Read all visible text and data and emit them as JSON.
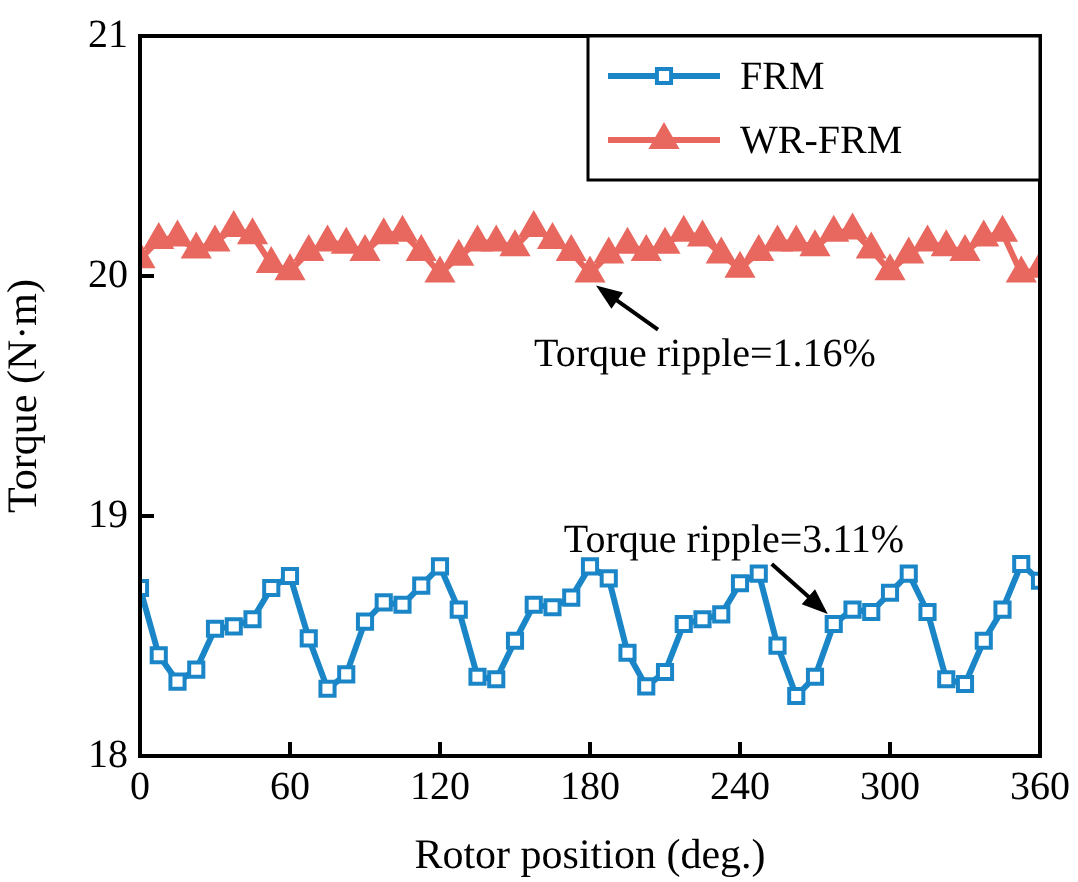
{
  "chart_data": {
    "type": "line",
    "xlabel": "Rotor position (deg.)",
    "ylabel": "Torque (N·m)",
    "x": [
      0,
      7.5,
      15,
      22.5,
      30,
      37.5,
      45,
      52.5,
      60,
      67.5,
      75,
      82.5,
      90,
      97.5,
      105,
      112.5,
      120,
      127.5,
      135,
      142.5,
      150,
      157.5,
      165,
      172.5,
      180,
      187.5,
      195,
      202.5,
      210,
      217.5,
      225,
      232.5,
      240,
      247.5,
      255,
      262.5,
      270,
      277.5,
      285,
      292.5,
      300,
      307.5,
      315,
      322.5,
      330,
      337.5,
      345,
      352.5,
      360
    ],
    "series": [
      {
        "name": "FRM",
        "color": "#1a86c8",
        "marker": "square",
        "values": [
          18.7,
          18.42,
          18.31,
          18.36,
          18.53,
          18.54,
          18.57,
          18.7,
          18.75,
          18.49,
          18.28,
          18.34,
          18.56,
          18.64,
          18.63,
          18.71,
          18.79,
          18.61,
          18.33,
          18.32,
          18.48,
          18.63,
          18.62,
          18.66,
          18.79,
          18.74,
          18.43,
          18.29,
          18.35,
          18.55,
          18.57,
          18.59,
          18.72,
          18.76,
          18.46,
          18.25,
          18.33,
          18.55,
          18.61,
          18.6,
          18.68,
          18.76,
          18.6,
          18.32,
          18.3,
          18.48,
          18.61,
          18.8,
          18.73
        ]
      },
      {
        "name": "WR-FRM",
        "color": "#e8685f",
        "marker": "triangle",
        "values": [
          20.07,
          20.15,
          20.16,
          20.11,
          20.14,
          20.2,
          20.17,
          20.05,
          20.02,
          20.1,
          20.14,
          20.13,
          20.1,
          20.17,
          20.18,
          20.1,
          20.01,
          20.08,
          20.14,
          20.14,
          20.12,
          20.2,
          20.15,
          20.1,
          20.01,
          20.09,
          20.13,
          20.1,
          20.13,
          20.18,
          20.16,
          20.09,
          20.03,
          20.1,
          20.14,
          20.14,
          20.12,
          20.18,
          20.19,
          20.11,
          20.02,
          20.09,
          20.14,
          20.12,
          20.1,
          20.16,
          20.18,
          20.01,
          20.03
        ]
      }
    ],
    "xlim": [
      0,
      360
    ],
    "xticks": [
      0,
      60,
      120,
      180,
      240,
      300,
      360
    ],
    "ylim": [
      18,
      21
    ],
    "yticks": [
      18,
      19,
      20,
      21
    ],
    "legend": "top right",
    "grid": false,
    "line_style": "solid",
    "annotations": [
      {
        "text": "Torque ripple=1.16%",
        "x": 180,
        "y": 20.01
      },
      {
        "text": "Torque ripple=3.11%",
        "x": 277.5,
        "y": 18.55
      }
    ]
  }
}
